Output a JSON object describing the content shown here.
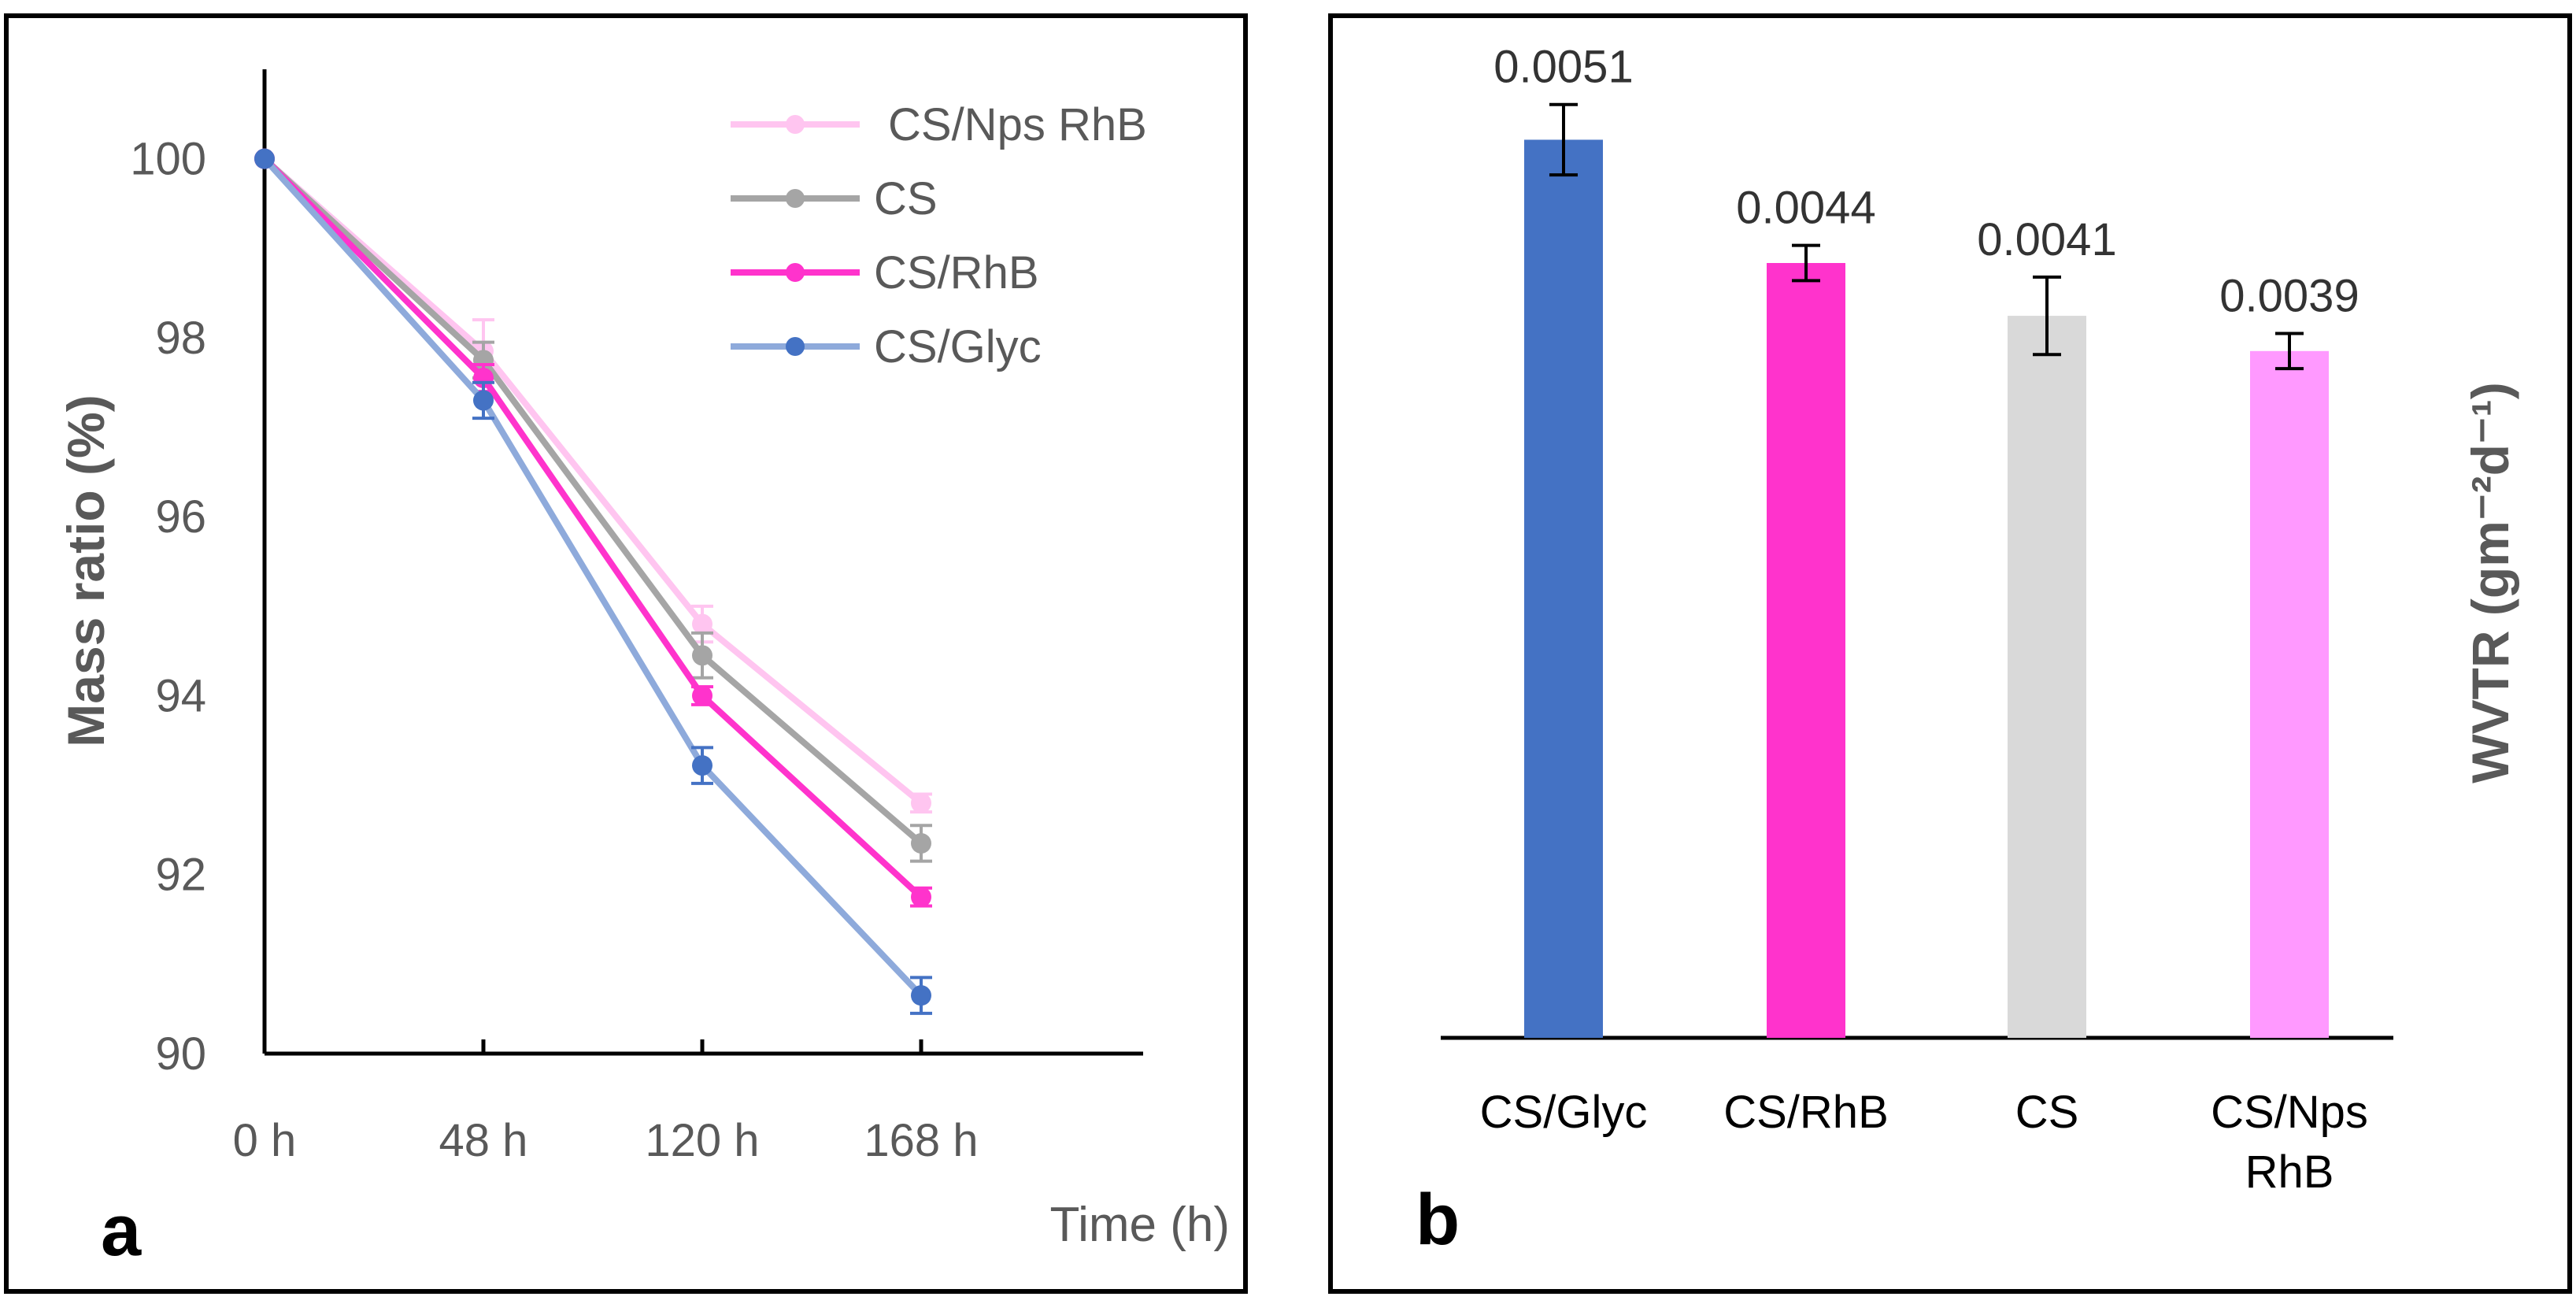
{
  "chart_data": [
    {
      "panel": "a",
      "type": "line",
      "title": "",
      "xlabel": "Time (h)",
      "ylabel": "Mass ratio (%)",
      "categories": [
        "0 h",
        "48 h",
        "120 h",
        "168 h"
      ],
      "ylim": [
        90,
        101
      ],
      "yticks": [
        "90",
        "92",
        "94",
        "96",
        "98",
        "100"
      ],
      "grid": false,
      "legend": "top-right",
      "series": [
        {
          "name": "CS/Nps RhB",
          "color": "#FFC5F0",
          "values": [
            100,
            97.85,
            94.8,
            92.8
          ],
          "errors": [
            0,
            0.35,
            0.2,
            0.1
          ]
        },
        {
          "name": "CS",
          "color": "#A5A5A5",
          "values": [
            100,
            97.75,
            94.45,
            92.35
          ],
          "errors": [
            0,
            0.2,
            0.25,
            0.2
          ]
        },
        {
          "name": "CS/RhB",
          "color": "#FF33CC",
          "values": [
            100,
            97.55,
            94.0,
            91.75
          ],
          "errors": [
            0,
            0.15,
            0.1,
            0.1
          ]
        },
        {
          "name": "CS/Glyc",
          "color": "#4472C4",
          "lineColor": "#8EAADB",
          "values": [
            100,
            97.3,
            93.22,
            90.65
          ],
          "errors": [
            0,
            0.2,
            0.2,
            0.2
          ]
        }
      ]
    },
    {
      "panel": "b",
      "type": "bar",
      "title": "",
      "xlabel": "",
      "ylabel": "WVTR (gm⁻²d⁻¹)",
      "ylim": [
        0,
        0.0055
      ],
      "grid": false,
      "categories": [
        "CS/Glyc",
        "CS/RhB",
        "CS",
        "CS/Nps RhB"
      ],
      "category_lines": [
        [
          "CS/Glyc"
        ],
        [
          "CS/RhB"
        ],
        [
          "CS"
        ],
        [
          "CS/Nps",
          "RhB"
        ]
      ],
      "values": [
        0.0051,
        0.0044,
        0.0041,
        0.0039
      ],
      "value_labels": [
        "0.0051",
        "0.0044",
        "0.0041",
        "0.0039"
      ],
      "errors": [
        0.0002,
        0.0001,
        0.00022,
        0.0001
      ],
      "colors": [
        "#4472C4",
        "#FF33CC",
        "#D9D9D9",
        "#FF99FF"
      ]
    }
  ]
}
